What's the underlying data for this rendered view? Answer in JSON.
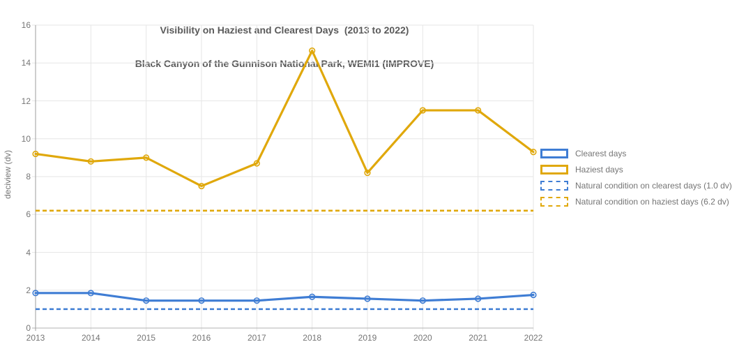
{
  "chart_data": {
    "type": "line",
    "title": "Visibility on Haziest and Clearest Days  (2013 to 2022)",
    "subtitle": "Black Canyon of the Gunnison National Park, WEMI1 (IMPROVE)",
    "ylabel": "deciview (dv)",
    "xlabel": "",
    "x": [
      "2013",
      "2014",
      "2015",
      "2016",
      "2017",
      "2018",
      "2019",
      "2020",
      "2021",
      "2022"
    ],
    "ylim": [
      0,
      16
    ],
    "ytick_step": 2,
    "grid": true,
    "legend_position": "right",
    "series": [
      {
        "name": "Clearest days",
        "color": "#3F7DD4",
        "style": "solid",
        "values": [
          1.85,
          1.85,
          1.45,
          1.45,
          1.45,
          1.65,
          1.55,
          1.45,
          1.55,
          1.75
        ]
      },
      {
        "name": "Haziest days",
        "color": "#E0A80B",
        "style": "solid",
        "values": [
          9.2,
          8.8,
          9.0,
          7.5,
          8.7,
          14.65,
          8.2,
          11.5,
          11.5,
          9.3
        ]
      }
    ],
    "reference_lines": [
      {
        "name": "Natural condition on clearest days (1.0 dv)",
        "color": "#3F7DD4",
        "style": "dashed",
        "value": 1.0
      },
      {
        "name": "Natural condition on haziest days (6.2 dv)",
        "color": "#E0A80B",
        "style": "dashed",
        "value": 6.2
      }
    ],
    "colors": {
      "grid": "#e6e6e6",
      "axis": "#9e9e9e",
      "baseline": "#b3b3b3",
      "title": "#5a5a5a",
      "tick_label": "#757575",
      "legend_label": "#757575"
    }
  }
}
